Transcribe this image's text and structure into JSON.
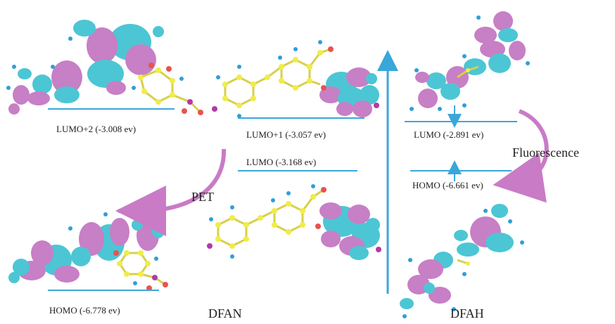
{
  "colors": {
    "level_line": "#39a7d9",
    "axis_arrow": "#39a7d9",
    "orbital_cyan": "#4cc6d4",
    "orbital_magenta": "#c77fc6",
    "pet_arrow": "#c97bc6",
    "atom_carbon": "#f0ec4a",
    "atom_hydrogen": "#2f9fd6",
    "atom_oxygen": "#e8534e",
    "atom_nitrogen": "#b23aa6",
    "bond": "#d7d04a"
  },
  "dfan": {
    "name": "DFAN",
    "levels": {
      "lumo2": "LUMO+2 (-3.008 ev)",
      "lumo1": "LUMO+1 (-3.057 ev)",
      "lumo": "LUMO (-3.168 ev)",
      "homo": "HOMO (-6.778 ev)"
    },
    "process": "PET"
  },
  "dfah": {
    "name": "DFAH",
    "levels": {
      "lumo": "LUMO (-2.891 ev)",
      "homo": "HOMO (-6.661 ev)"
    },
    "process": "Fluorescence"
  }
}
